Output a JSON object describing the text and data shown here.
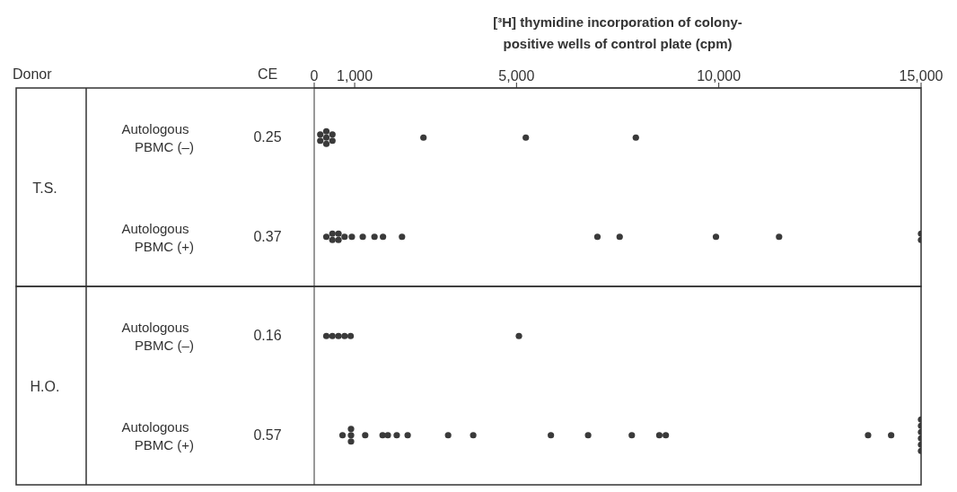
{
  "chart_data": [
    {
      "type": "scatter",
      "orientation": "horizontal",
      "xlabel": "[³H] thymidine incorporation of colony-positive wells of control plate (cpm)",
      "ylabel": "T.S.",
      "categories": [
        "Autologous PBMC (–)",
        "Autologous PBMC (+)"
      ],
      "xlim": [
        0,
        15000
      ],
      "xticks": [
        0,
        {
          "value": 1000,
          "label": "1,000"
        },
        {
          "value": 5000,
          "label": "5,000"
        },
        {
          "value": 10000,
          "label": "10,000"
        },
        {
          "value": 15000,
          "label": "15,000"
        }
      ],
      "marker": "circle",
      "series": [
        {
          "color": "#3a3a3a",
          "x": [
            "Autologous PBMC (–)",
            "Autologous PBMC (–)",
            "Autologous PBMC (–)",
            "Autologous PBMC (–)",
            "Autologous PBMC (–)",
            "Autologous PBMC (–)",
            "Autologous PBMC (–)",
            "Autologous PBMC (–)",
            "Autologous PBMC (–)",
            "Autologous PBMC (–)",
            "Autologous PBMC (+)",
            "Autologous PBMC (+)",
            "Autologous PBMC (+)",
            "Autologous PBMC (+)",
            "Autologous PBMC (+)",
            "Autologous PBMC (+)",
            "Autologous PBMC (+)",
            "Autologous PBMC (+)",
            "Autologous PBMC (+)",
            "Autologous PBMC (+)",
            "Autologous PBMC (+)",
            "Autologous PBMC (+)",
            "Autologous PBMC (+)",
            "Autologous PBMC (+)",
            "Autologous PBMC (+)",
            "Autologous PBMC (+)",
            "Autologous PBMC (+)"
          ],
          "values": [
            150,
            150,
            300,
            300,
            300,
            450,
            450,
            2700,
            5230,
            7950,
            300,
            450,
            450,
            600,
            600,
            750,
            930,
            1200,
            1490,
            1700,
            2170,
            7000,
            7550,
            9930,
            11490,
            15000,
            15000
          ]
        }
      ],
      "annotations": [
        "Donor",
        "CE",
        "0.25",
        "0.37"
      ]
    },
    {
      "type": "scatter",
      "orientation": "horizontal",
      "ylabel": "H.O.",
      "categories": [
        "Autologous PBMC (–)",
        "Autologous PBMC (+)"
      ],
      "xlim": [
        0,
        15000
      ],
      "tick_labels": "y",
      "marker": "circle",
      "series": [
        {
          "color": "#3a3a3a",
          "x": [
            "Autologous PBMC (–)",
            "Autologous PBMC (–)",
            "Autologous PBMC (–)",
            "Autologous PBMC (–)",
            "Autologous PBMC (–)",
            "Autologous PBMC (–)",
            "Autologous PBMC (+)",
            "Autologous PBMC (+)",
            "Autologous PBMC (+)",
            "Autologous PBMC (+)",
            "Autologous PBMC (+)",
            "Autologous PBMC (+)",
            "Autologous PBMC (+)",
            "Autologous PBMC (+)",
            "Autologous PBMC (+)",
            "Autologous PBMC (+)",
            "Autologous PBMC (+)",
            "Autologous PBMC (+)",
            "Autologous PBMC (+)",
            "Autologous PBMC (+)",
            "Autologous PBMC (+)",
            "Autologous PBMC (+)",
            "Autologous PBMC (+)",
            "Autologous PBMC (+)",
            "Autologous PBMC (+)",
            "Autologous PBMC (+)",
            "Autologous PBMC (+)",
            "Autologous PBMC (+)",
            "Autologous PBMC (+)",
            "Autologous PBMC (+)"
          ],
          "values": [
            300,
            450,
            600,
            750,
            900,
            5060,
            700,
            910,
            910,
            910,
            1260,
            1690,
            1820,
            2040,
            2310,
            3310,
            3930,
            5850,
            6770,
            7850,
            8530,
            8690,
            13690,
            14260,
            15000,
            15000,
            15000,
            15000,
            15000,
            15000
          ]
        }
      ],
      "annotations": [
        "0.16",
        "0.57"
      ]
    }
  ]
}
